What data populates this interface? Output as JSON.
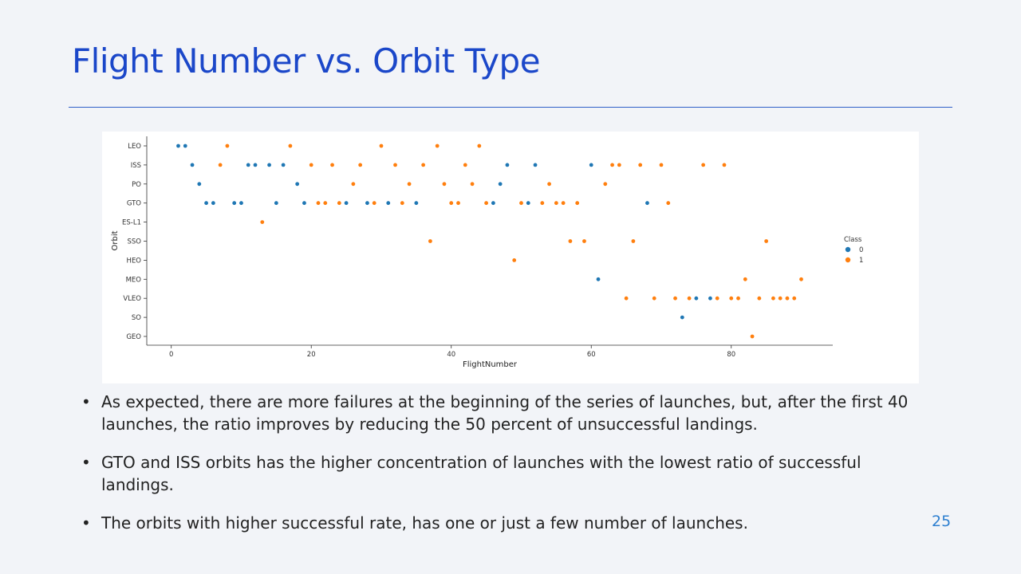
{
  "slide": {
    "title": "Flight Number vs. Orbit Type",
    "page_number": "25",
    "bullets": [
      "As expected, there are more failures at the beginning of the series of launches, but, after the first 40 launches, the ratio improves by reducing the 50 percent of unsuccessful landings.",
      "GTO and ISS orbits has the higher concentration of launches with the lowest ratio of successful landings.",
      "The orbits with higher successful rate, has one or just a few number of launches."
    ]
  },
  "chart_data": {
    "type": "scatter",
    "title": "",
    "xlabel": "FlightNumber",
    "ylabel": "Orbit",
    "xlim": [
      -3.5,
      94.5
    ],
    "x_ticks": [
      0,
      20,
      40,
      60,
      80
    ],
    "y_categories": [
      "LEO",
      "ISS",
      "PO",
      "GTO",
      "ES-L1",
      "SSO",
      "HEO",
      "MEO",
      "VLEO",
      "SO",
      "GEO"
    ],
    "legend": {
      "title": "Class",
      "position": "right",
      "entries": [
        "0",
        "1"
      ]
    },
    "colors": {
      "0": "#1f77b4",
      "1": "#ff7f0e"
    },
    "series": [
      {
        "name": "0",
        "points": [
          [
            1,
            "LEO"
          ],
          [
            2,
            "LEO"
          ],
          [
            3,
            "ISS"
          ],
          [
            4,
            "PO"
          ],
          [
            5,
            "GTO"
          ],
          [
            6,
            "GTO"
          ],
          [
            9,
            "GTO"
          ],
          [
            10,
            "GTO"
          ],
          [
            11,
            "ISS"
          ],
          [
            12,
            "ISS"
          ],
          [
            14,
            "ISS"
          ],
          [
            15,
            "GTO"
          ],
          [
            16,
            "ISS"
          ],
          [
            18,
            "PO"
          ],
          [
            19,
            "GTO"
          ],
          [
            25,
            "GTO"
          ],
          [
            28,
            "GTO"
          ],
          [
            31,
            "GTO"
          ],
          [
            35,
            "GTO"
          ],
          [
            46,
            "GTO"
          ],
          [
            47,
            "PO"
          ],
          [
            48,
            "ISS"
          ],
          [
            51,
            "GTO"
          ],
          [
            52,
            "ISS"
          ],
          [
            60,
            "ISS"
          ],
          [
            61,
            "MEO"
          ],
          [
            68,
            "GTO"
          ],
          [
            73,
            "SO"
          ],
          [
            75,
            "VLEO"
          ],
          [
            77,
            "VLEO"
          ]
        ]
      },
      {
        "name": "1",
        "points": [
          [
            7,
            "ISS"
          ],
          [
            8,
            "LEO"
          ],
          [
            13,
            "ES-L1"
          ],
          [
            17,
            "LEO"
          ],
          [
            20,
            "ISS"
          ],
          [
            21,
            "GTO"
          ],
          [
            22,
            "GTO"
          ],
          [
            23,
            "ISS"
          ],
          [
            24,
            "GTO"
          ],
          [
            26,
            "PO"
          ],
          [
            27,
            "ISS"
          ],
          [
            29,
            "GTO"
          ],
          [
            30,
            "LEO"
          ],
          [
            32,
            "ISS"
          ],
          [
            33,
            "GTO"
          ],
          [
            34,
            "PO"
          ],
          [
            36,
            "ISS"
          ],
          [
            37,
            "SSO"
          ],
          [
            38,
            "LEO"
          ],
          [
            39,
            "PO"
          ],
          [
            40,
            "GTO"
          ],
          [
            41,
            "GTO"
          ],
          [
            42,
            "ISS"
          ],
          [
            43,
            "PO"
          ],
          [
            44,
            "LEO"
          ],
          [
            45,
            "GTO"
          ],
          [
            49,
            "HEO"
          ],
          [
            50,
            "GTO"
          ],
          [
            53,
            "GTO"
          ],
          [
            54,
            "PO"
          ],
          [
            55,
            "GTO"
          ],
          [
            56,
            "GTO"
          ],
          [
            57,
            "SSO"
          ],
          [
            58,
            "GTO"
          ],
          [
            59,
            "SSO"
          ],
          [
            62,
            "PO"
          ],
          [
            63,
            "ISS"
          ],
          [
            64,
            "ISS"
          ],
          [
            65,
            "VLEO"
          ],
          [
            66,
            "SSO"
          ],
          [
            67,
            "ISS"
          ],
          [
            69,
            "VLEO"
          ],
          [
            70,
            "ISS"
          ],
          [
            71,
            "GTO"
          ],
          [
            72,
            "VLEO"
          ],
          [
            74,
            "VLEO"
          ],
          [
            76,
            "ISS"
          ],
          [
            78,
            "VLEO"
          ],
          [
            79,
            "ISS"
          ],
          [
            80,
            "VLEO"
          ],
          [
            81,
            "VLEO"
          ],
          [
            82,
            "MEO"
          ],
          [
            83,
            "GEO"
          ],
          [
            84,
            "VLEO"
          ],
          [
            85,
            "SSO"
          ],
          [
            86,
            "VLEO"
          ],
          [
            87,
            "VLEO"
          ],
          [
            88,
            "VLEO"
          ],
          [
            89,
            "VLEO"
          ],
          [
            90,
            "MEO"
          ]
        ]
      }
    ]
  }
}
